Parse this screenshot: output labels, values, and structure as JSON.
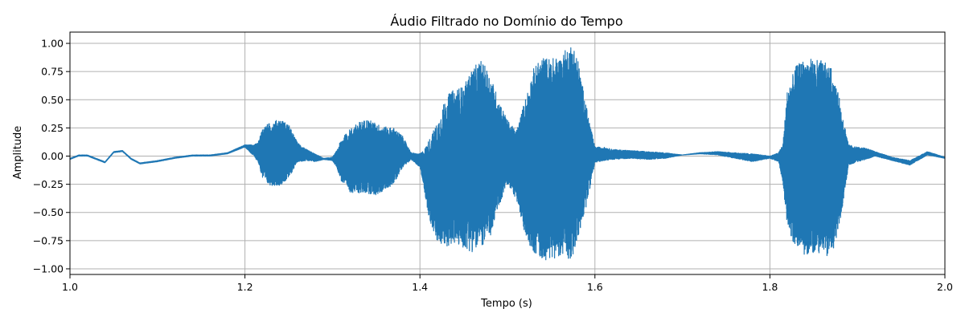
{
  "chart_data": {
    "type": "line",
    "title": "Áudio Filtrado no Domínio do Tempo",
    "xlabel": "Tempo (s)",
    "ylabel": "Amplitude",
    "xlim": [
      1.0,
      2.0
    ],
    "ylim": [
      -1.05,
      1.1
    ],
    "xticks": [
      1.0,
      1.2,
      1.4,
      1.6,
      1.8,
      2.0
    ],
    "xtick_labels": [
      "1.0",
      "1.2",
      "1.4",
      "1.6",
      "1.8",
      "2.0"
    ],
    "yticks": [
      -1.0,
      -0.75,
      -0.5,
      -0.25,
      0.0,
      0.25,
      0.5,
      0.75,
      1.0
    ],
    "ytick_labels": [
      "−1.00",
      "−0.75",
      "−0.50",
      "−0.25",
      "0.00",
      "0.25",
      "0.50",
      "0.75",
      "1.00"
    ],
    "grid": true,
    "series_color": "#1f77b4",
    "envelope": {
      "t": [
        1.0,
        1.01,
        1.02,
        1.03,
        1.04,
        1.05,
        1.06,
        1.07,
        1.08,
        1.09,
        1.1,
        1.12,
        1.14,
        1.16,
        1.18,
        1.2,
        1.21,
        1.215,
        1.22,
        1.225,
        1.23,
        1.24,
        1.25,
        1.26,
        1.27,
        1.28,
        1.29,
        1.3,
        1.305,
        1.31,
        1.32,
        1.33,
        1.34,
        1.35,
        1.36,
        1.37,
        1.38,
        1.39,
        1.4,
        1.405,
        1.41,
        1.42,
        1.43,
        1.44,
        1.45,
        1.46,
        1.47,
        1.48,
        1.49,
        1.5,
        1.51,
        1.52,
        1.53,
        1.54,
        1.55,
        1.56,
        1.57,
        1.575,
        1.58,
        1.59,
        1.6,
        1.61,
        1.62,
        1.64,
        1.66,
        1.68,
        1.7,
        1.72,
        1.74,
        1.76,
        1.78,
        1.8,
        1.81,
        1.815,
        1.82,
        1.83,
        1.84,
        1.85,
        1.86,
        1.87,
        1.88,
        1.89,
        1.9,
        1.91,
        1.92,
        1.94,
        1.96,
        1.98,
        2.0
      ],
      "upper": [
        -0.02,
        0.01,
        0.01,
        -0.02,
        -0.05,
        0.04,
        0.05,
        -0.02,
        -0.06,
        -0.05,
        -0.04,
        -0.01,
        0.01,
        0.01,
        0.03,
        0.1,
        0.1,
        0.12,
        0.25,
        0.28,
        0.3,
        0.33,
        0.28,
        0.12,
        0.06,
        0.02,
        -0.02,
        -0.01,
        0.05,
        0.15,
        0.24,
        0.3,
        0.33,
        0.29,
        0.26,
        0.25,
        0.18,
        0.03,
        0.02,
        0.06,
        0.14,
        0.3,
        0.53,
        0.6,
        0.62,
        0.78,
        0.85,
        0.73,
        0.5,
        0.32,
        0.22,
        0.5,
        0.78,
        0.88,
        0.87,
        0.88,
        0.98,
        1.0,
        0.88,
        0.45,
        0.08,
        0.08,
        0.06,
        0.05,
        0.04,
        0.03,
        0.01,
        0.03,
        0.04,
        0.03,
        0.02,
        0.0,
        0.03,
        0.12,
        0.6,
        0.8,
        0.87,
        0.86,
        0.85,
        0.78,
        0.5,
        0.1,
        0.08,
        0.07,
        0.04,
        -0.01,
        -0.04,
        0.04,
        -0.01
      ],
      "lower": [
        -0.03,
        0.0,
        0.0,
        -0.03,
        -0.06,
        0.03,
        0.04,
        -0.03,
        -0.07,
        -0.06,
        -0.05,
        -0.02,
        0.0,
        0.0,
        0.02,
        0.08,
        0.0,
        -0.05,
        -0.2,
        -0.25,
        -0.26,
        -0.26,
        -0.2,
        -0.05,
        -0.04,
        -0.05,
        -0.03,
        -0.04,
        -0.1,
        -0.22,
        -0.32,
        -0.33,
        -0.33,
        -0.35,
        -0.3,
        -0.25,
        -0.1,
        -0.03,
        -0.1,
        -0.3,
        -0.54,
        -0.78,
        -0.8,
        -0.78,
        -0.82,
        -0.85,
        -0.8,
        -0.74,
        -0.45,
        -0.25,
        -0.38,
        -0.7,
        -0.86,
        -0.92,
        -0.92,
        -0.88,
        -0.92,
        -0.89,
        -0.76,
        -0.45,
        -0.06,
        -0.04,
        -0.03,
        -0.02,
        -0.03,
        -0.02,
        0.01,
        0.02,
        0.01,
        -0.02,
        -0.05,
        -0.02,
        -0.05,
        -0.25,
        -0.65,
        -0.82,
        -0.88,
        -0.86,
        -0.86,
        -0.92,
        -0.6,
        -0.08,
        -0.05,
        -0.03,
        0.0,
        -0.04,
        -0.08,
        0.01,
        -0.02
      ]
    }
  }
}
